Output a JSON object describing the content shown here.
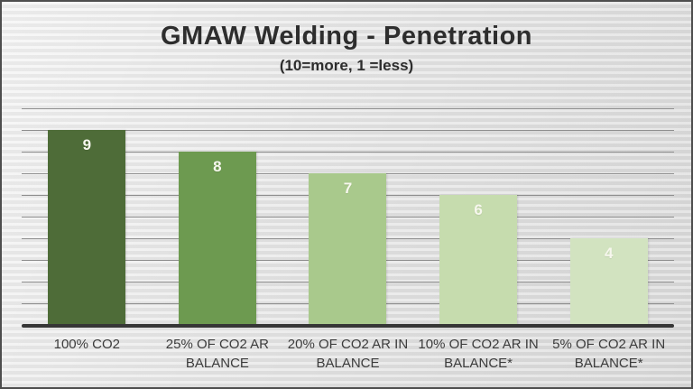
{
  "chart_data": {
    "type": "bar",
    "title": "GMAW Welding - Penetration",
    "subtitle": "(10=more, 1 =less)",
    "categories": [
      "100% CO2",
      "25% OF CO2  AR BALANCE",
      "20% OF CO2  AR IN BALANCE",
      "10% OF CO2  AR IN BALANCE*",
      "5% OF CO2  AR IN BALANCE*"
    ],
    "values": [
      9,
      8,
      7,
      6,
      4
    ],
    "bar_colors": [
      "#4e6c38",
      "#6d9a50",
      "#a9c98c",
      "#c6dcae",
      "#d2e3c0"
    ],
    "xlabel": "",
    "ylabel": "",
    "ylim": [
      0,
      10
    ],
    "grid": true,
    "gridline_step": 1,
    "legend": "none",
    "value_label_color": "#f7f7ee",
    "axis_line_color": "#363636"
  },
  "labels": [
    {
      "line1": "100% CO2",
      "line2": ""
    },
    {
      "line1": "25% OF CO2  AR",
      "line2": "BALANCE"
    },
    {
      "line1": "20% OF CO2  AR IN",
      "line2": "BALANCE"
    },
    {
      "line1": "10% OF CO2  AR IN",
      "line2": "BALANCE*"
    },
    {
      "line1": "5% OF CO2  AR IN",
      "line2": "BALANCE*"
    }
  ]
}
